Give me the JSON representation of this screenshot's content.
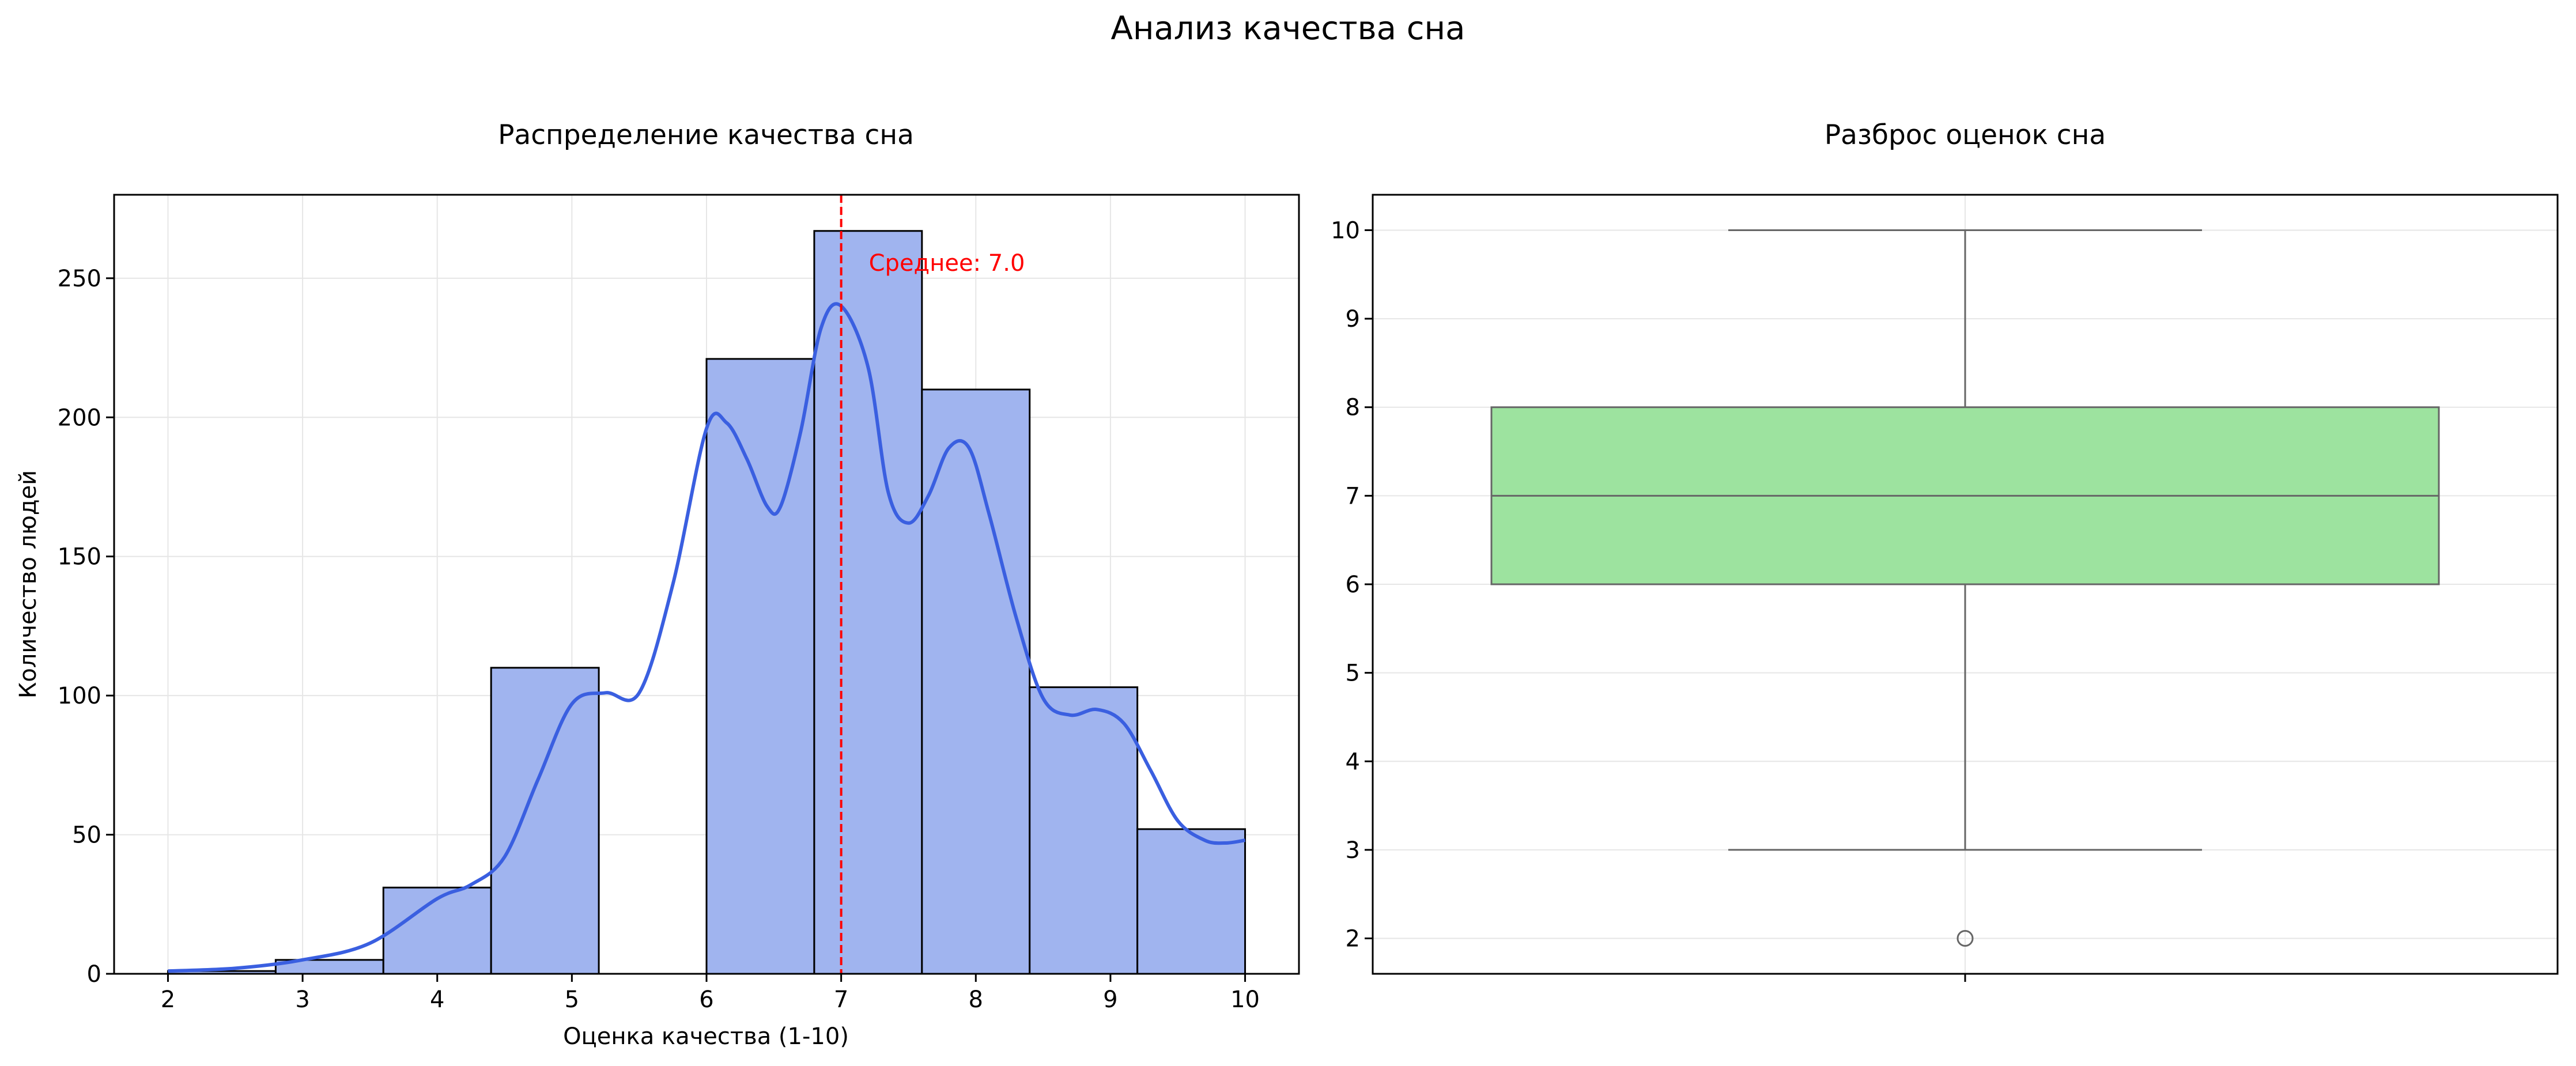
{
  "figure": {
    "suptitle": "Анализ качества сна"
  },
  "colors": {
    "bar_fill": "#a0b4ef",
    "bar_edge": "#000000",
    "kde_line": "#3a5fe0",
    "mean_line": "#ff0000",
    "box_fill": "#9de39f",
    "box_edge": "#666666",
    "grid": "#e6e6e6"
  },
  "chart_data": [
    {
      "type": "bar",
      "subtype": "histogram_with_kde",
      "title": "Распределение качества сна",
      "xlabel": "Оценка качества (1-10)",
      "ylabel": "Количество людей",
      "xlim": [
        1.6,
        10.4
      ],
      "ylim": [
        0,
        280
      ],
      "xticks": [
        "2",
        "3",
        "4",
        "5",
        "6",
        "7",
        "8",
        "9",
        "10"
      ],
      "yticks": [
        "0",
        "50",
        "100",
        "150",
        "200",
        "250"
      ],
      "grid": true,
      "bins": [
        {
          "x0": 2.0,
          "x1": 2.8,
          "count": 1
        },
        {
          "x0": 2.8,
          "x1": 3.6,
          "count": 5
        },
        {
          "x0": 3.6,
          "x1": 4.4,
          "count": 31
        },
        {
          "x0": 4.4,
          "x1": 5.2,
          "count": 110
        },
        {
          "x0": 5.2,
          "x1": 6.0,
          "count": 0
        },
        {
          "x0": 6.0,
          "x1": 6.8,
          "count": 221
        },
        {
          "x0": 6.8,
          "x1": 7.6,
          "count": 267
        },
        {
          "x0": 7.6,
          "x1": 8.4,
          "count": 210
        },
        {
          "x0": 8.4,
          "x1": 9.2,
          "count": 103
        },
        {
          "x0": 9.2,
          "x1": 10.0,
          "count": 52
        }
      ],
      "kde": {
        "x": [
          2.0,
          2.5,
          3.0,
          3.5,
          4.0,
          4.25,
          4.5,
          4.75,
          5.0,
          5.25,
          5.5,
          5.75,
          6.0,
          6.15,
          6.3,
          6.45,
          6.55,
          6.7,
          6.85,
          7.0,
          7.2,
          7.35,
          7.5,
          7.65,
          7.8,
          7.95,
          8.1,
          8.3,
          8.5,
          8.7,
          8.9,
          9.1,
          9.3,
          9.5,
          9.7,
          9.85,
          10.0
        ],
        "y": [
          1,
          2,
          5,
          11,
          27,
          32,
          42,
          70,
          97,
          101,
          101,
          140,
          196,
          198,
          185,
          168,
          168,
          195,
          232,
          240,
          218,
          173,
          162,
          172,
          189,
          189,
          165,
          128,
          99,
          93,
          95,
          90,
          73,
          55,
          48,
          47,
          48
        ]
      },
      "mean": {
        "x": 7.0,
        "label": "Среднее: 7.0"
      }
    },
    {
      "type": "box",
      "title": "Разброс оценок сна",
      "ylim": [
        1.6,
        10.4
      ],
      "yticks": [
        "2",
        "3",
        "4",
        "5",
        "6",
        "7",
        "8",
        "9",
        "10"
      ],
      "grid": true,
      "stats": {
        "whisker_low": 3,
        "q1": 6,
        "median": 7,
        "q3": 8,
        "whisker_high": 10,
        "outliers": [
          2
        ]
      }
    }
  ]
}
